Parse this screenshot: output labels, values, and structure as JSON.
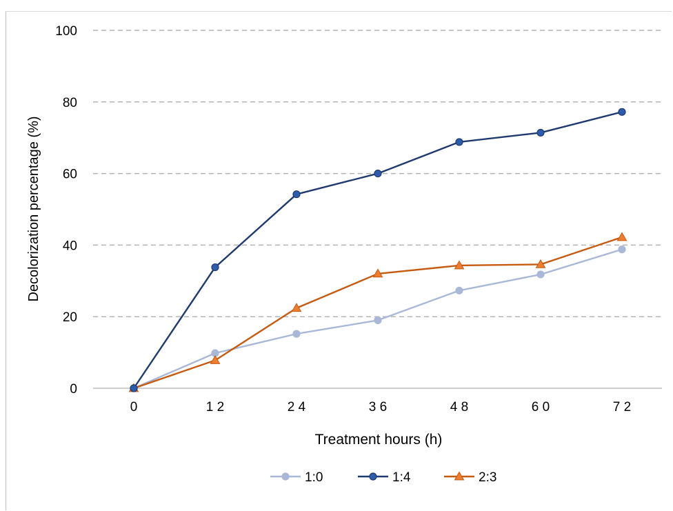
{
  "chart_data": {
    "type": "line",
    "title": "",
    "xlabel": "Treatment hours (h)",
    "ylabel": "Decolorization percentage (%)",
    "x": [
      0,
      12,
      24,
      36,
      48,
      60,
      72
    ],
    "x_tick_labels": [
      "0",
      "1 2",
      "2 4",
      "3 6",
      "4 8",
      "6 0",
      "7 2"
    ],
    "y_ticks": [
      0,
      20,
      40,
      60,
      80,
      100
    ],
    "y_tick_labels": [
      "0",
      "20",
      "40",
      "60",
      "80",
      "100"
    ],
    "ylim": [
      0,
      100
    ],
    "grid": "horizontal dashed",
    "legend_position": "bottom",
    "series": [
      {
        "name": "1:0",
        "values": [
          0,
          9.8,
          15.2,
          19.0,
          27.3,
          31.8,
          38.8
        ],
        "color": "#a9b8d6",
        "marker": "circle"
      },
      {
        "name": "1:4",
        "values": [
          0,
          33.8,
          54.2,
          60.0,
          68.8,
          71.4,
          77.2
        ],
        "color": "#1f3a6e",
        "marker_fill": "#2e5bab",
        "marker": "circle"
      },
      {
        "name": "2:3",
        "values": [
          0,
          7.8,
          22.4,
          32.0,
          34.3,
          34.6,
          42.2
        ],
        "color": "#c55a11",
        "marker_fill": "#ed7d31",
        "marker": "triangle"
      }
    ]
  }
}
